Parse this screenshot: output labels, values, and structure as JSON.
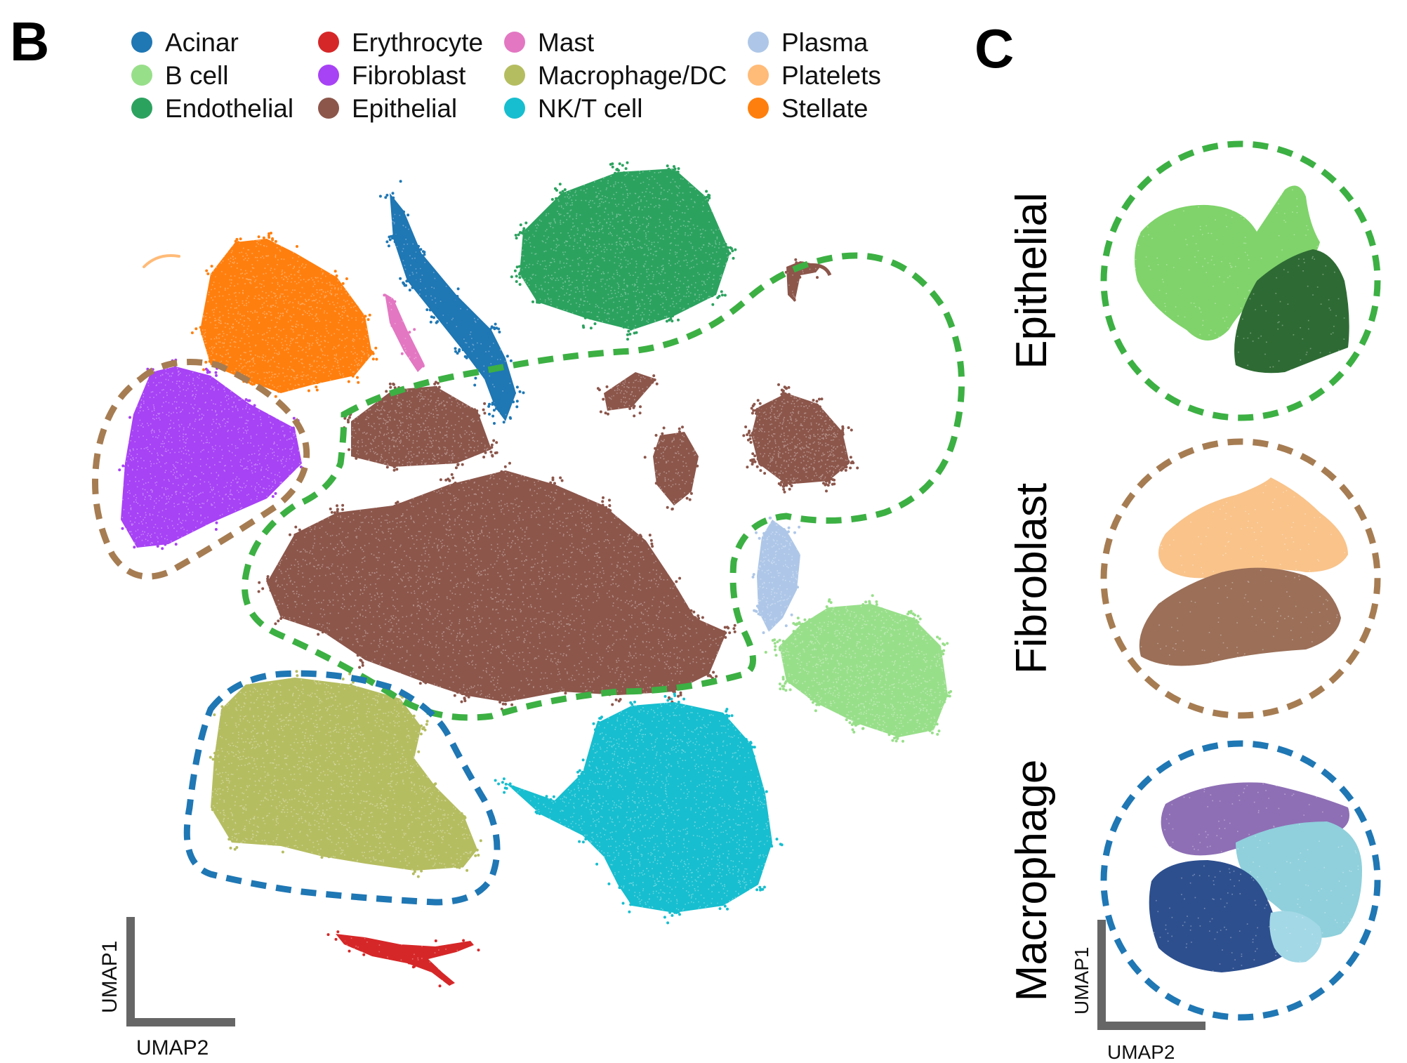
{
  "panels": {
    "b_label": "B",
    "c_label": "C"
  },
  "chart_data": [
    {
      "type": "scatter",
      "panel": "B",
      "xlabel": "UMAP2",
      "ylabel": "UMAP1",
      "grid": false,
      "legend_position": "top",
      "legend": [
        {
          "name": "Acinar",
          "color": "#1f77b4"
        },
        {
          "name": "B cell",
          "color": "#98df8a"
        },
        {
          "name": "Endothelial",
          "color": "#2ca25f"
        },
        {
          "name": "Erythrocyte",
          "color": "#d62728"
        },
        {
          "name": "Fibroblast",
          "color": "#a742f5"
        },
        {
          "name": "Epithelial",
          "color": "#8c564b"
        },
        {
          "name": "Mast",
          "color": "#e377c2"
        },
        {
          "name": "Macrophage/DC",
          "color": "#b5bd61"
        },
        {
          "name": "NK/T cell",
          "color": "#17becf"
        },
        {
          "name": "Plasma",
          "color": "#aec7e8"
        },
        {
          "name": "Platelets",
          "color": "#ffbb78"
        },
        {
          "name": "Stellate",
          "color": "#ff7f0e"
        }
      ],
      "highlighted_groups": [
        {
          "cluster": "Epithelial",
          "outline_color": "#3cb043"
        },
        {
          "cluster": "Fibroblast",
          "outline_color": "#a67c52"
        },
        {
          "cluster": "Macrophage/DC",
          "outline_color": "#1f77b4"
        }
      ]
    },
    {
      "type": "scatter",
      "panel": "C",
      "xlabel": "UMAP2",
      "ylabel": "UMAP1",
      "subplots": [
        {
          "label": "Epithelial",
          "outline_color": "#3cb043",
          "colors": [
            "#7fd36a",
            "#2e6b34"
          ]
        },
        {
          "label": "Fibroblast",
          "outline_color": "#a67c52",
          "colors": [
            "#f9c38a",
            "#9b6f58"
          ]
        },
        {
          "label": "Macrophage",
          "outline_color": "#1f77b4",
          "colors": [
            "#8e6fb5",
            "#8fd0dc",
            "#2d4f8e",
            "#a3d8e6"
          ]
        }
      ]
    }
  ]
}
